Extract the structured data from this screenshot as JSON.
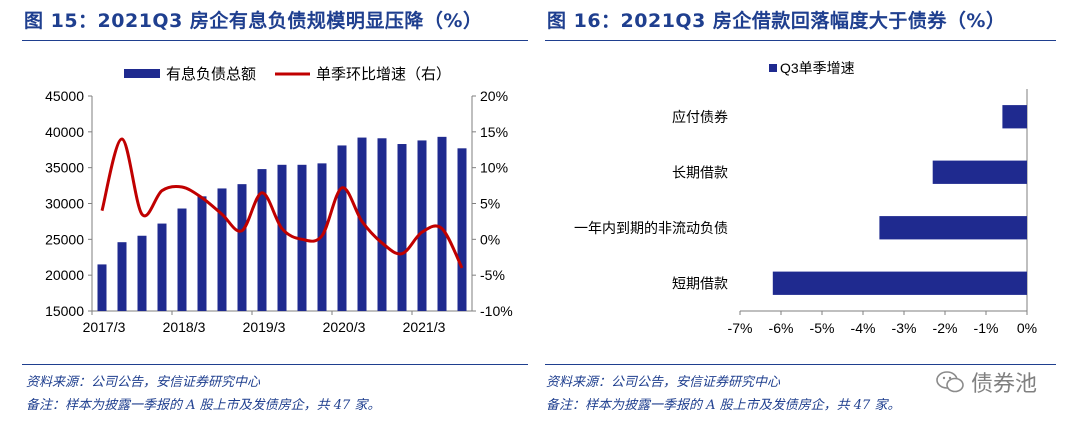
{
  "left": {
    "title": "图 15：2021Q3 房企有息负债规模明显压降（%）",
    "source": "资料来源：公司公告，安信证券研究中心",
    "note": "备注：样本为披露一季报的 A 股上市及发债房企，共 47 家。",
    "chart_data": {
      "type": "bar+line",
      "legend": [
        "有息负债总额",
        "单季环比增速（右）"
      ],
      "x_tick_labels": [
        "2017/3",
        "2018/3",
        "2019/3",
        "2020/3",
        "2021/3"
      ],
      "left_axis": {
        "ylim": [
          15000,
          45000
        ],
        "ticks": [
          "15000",
          "20000",
          "25000",
          "30000",
          "35000",
          "40000",
          "45000"
        ]
      },
      "right_axis": {
        "ylim": [
          -10,
          20
        ],
        "ticks": [
          "-10%",
          "-5%",
          "0%",
          "5%",
          "10%",
          "15%",
          "20%"
        ]
      },
      "bar_series": {
        "name": "有息负债总额",
        "color": "#1f2a8f",
        "values": [
          21500,
          24600,
          25500,
          27200,
          29300,
          31000,
          32100,
          32700,
          34800,
          35400,
          35400,
          35600,
          38100,
          39200,
          39100,
          38300,
          38800,
          39300,
          37700
        ]
      },
      "line_series": {
        "name": "单季环比增速（右）",
        "color": "#c00000",
        "values": [
          4.0,
          14.0,
          3.5,
          6.8,
          7.3,
          5.8,
          3.5,
          1.2,
          6.5,
          1.5,
          0.0,
          0.5,
          7.2,
          2.5,
          -0.5,
          -2.0,
          1.0,
          1.5,
          -4.0
        ]
      }
    }
  },
  "right": {
    "title": "图 16：2021Q3 房企借款回落幅度大于债券（%）",
    "source": "资料来源：公司公告，安信证券研究中心",
    "note": "备注：样本为披露一季报的 A 股上市及发债房企，共 47 家。",
    "chart_data": {
      "type": "horizontal-bar",
      "legend": [
        "Q3单季增速"
      ],
      "categories": [
        "应付债券",
        "长期借款",
        "一年内到期的非流动负债",
        "短期借款"
      ],
      "values": [
        -0.6,
        -2.3,
        -3.6,
        -6.2
      ],
      "xlim": [
        -7,
        0
      ],
      "x_ticks": [
        "-7%",
        "-6%",
        "-5%",
        "-4%",
        "-3%",
        "-2%",
        "-1%",
        "0%"
      ],
      "color": "#1f2a8f"
    }
  },
  "watermark": "债券池"
}
